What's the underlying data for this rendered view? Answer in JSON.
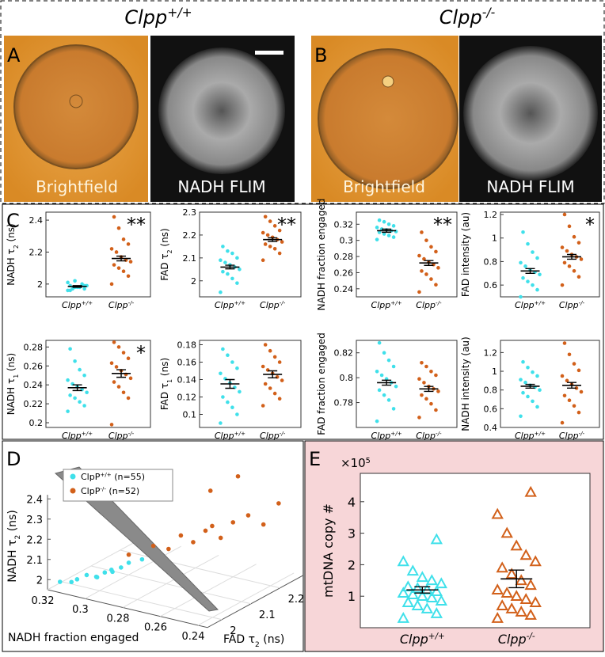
{
  "header": {
    "left": {
      "text": "Clpp",
      "sup": "+/+"
    },
    "right": {
      "text": "Clpp",
      "sup": "-/-"
    }
  },
  "images": [
    {
      "label": "A",
      "bright": "Brightfield",
      "flim": "NADH FLIM"
    },
    {
      "label": "B",
      "bright": "Brightfield",
      "flim": "NADH FLIM"
    }
  ],
  "panel_c": {
    "label": "C",
    "groups": [
      {
        "text": "Clpp",
        "sup": "+/+",
        "color": "#3fe0ea"
      },
      {
        "text": "Clpp",
        "sup": "-/-",
        "color": "#d2601a"
      }
    ],
    "plots": [
      {
        "type": "swarm",
        "ylabel": {
          "text": "NADH τ",
          "sub": "2",
          "unit": " (ns)"
        },
        "ylim": [
          1.92,
          2.45
        ],
        "yticks": [
          2,
          2.2,
          2.4
        ],
        "significance": "**",
        "groups": [
          {
            "values": [
              1.96,
              1.97,
              1.98,
              1.98,
              1.99,
              1.99,
              2.0,
              1.98,
              1.97,
              2.01,
              1.99,
              1.98,
              2.02,
              1.96
            ],
            "mean": 1.985,
            "sem": 0.005
          },
          {
            "values": [
              2.0,
              2.05,
              2.08,
              2.1,
              2.12,
              2.14,
              2.15,
              2.17,
              2.2,
              2.22,
              2.25,
              2.28,
              2.35,
              2.42
            ],
            "mean": 2.16,
            "sem": 0.015
          }
        ]
      },
      {
        "type": "swarm",
        "ylabel": {
          "text": "FAD τ",
          "sub": "2",
          "unit": " (ns)"
        },
        "ylim": [
          1.93,
          2.3
        ],
        "yticks": [
          2,
          2.1,
          2.2,
          2.3
        ],
        "significance": "**",
        "groups": [
          {
            "values": [
              1.95,
              1.99,
              2.01,
              2.03,
              2.04,
              2.05,
              2.06,
              2.07,
              2.08,
              2.09,
              2.1,
              2.12,
              2.13,
              2.15
            ],
            "mean": 2.06,
            "sem": 0.008
          },
          {
            "values": [
              2.09,
              2.12,
              2.14,
              2.15,
              2.16,
              2.17,
              2.18,
              2.19,
              2.2,
              2.21,
              2.22,
              2.24,
              2.26,
              2.28
            ],
            "mean": 2.18,
            "sem": 0.008
          }
        ]
      },
      {
        "type": "swarm",
        "ylabel": {
          "text": "NADH fraction engaged"
        },
        "ylim": [
          0.23,
          0.335
        ],
        "yticks": [
          0.24,
          0.26,
          0.28,
          0.3,
          0.32
        ],
        "significance": "**",
        "groups": [
          {
            "values": [
              0.301,
              0.304,
              0.306,
              0.308,
              0.31,
              0.311,
              0.312,
              0.313,
              0.314,
              0.316,
              0.318,
              0.32,
              0.323,
              0.325
            ],
            "mean": 0.312,
            "sem": 0.002
          },
          {
            "values": [
              0.236,
              0.245,
              0.252,
              0.258,
              0.262,
              0.266,
              0.27,
              0.273,
              0.277,
              0.281,
              0.286,
              0.292,
              0.3,
              0.31
            ],
            "mean": 0.272,
            "sem": 0.003
          }
        ]
      },
      {
        "type": "swarm",
        "ylabel": {
          "text": "FAD intensity (au)"
        },
        "ylim": [
          0.5,
          1.22
        ],
        "yticks": [
          0.6,
          0.8,
          1,
          1.2
        ],
        "significance": "*",
        "groups": [
          {
            "values": [
              0.5,
              0.56,
              0.6,
              0.63,
              0.66,
              0.69,
              0.71,
              0.73,
              0.76,
              0.79,
              0.83,
              0.88,
              0.95,
              1.05
            ],
            "mean": 0.72,
            "sem": 0.02
          },
          {
            "values": [
              0.6,
              0.67,
              0.72,
              0.76,
              0.79,
              0.82,
              0.84,
              0.86,
              0.89,
              0.92,
              0.96,
              1.01,
              1.1,
              1.2
            ],
            "mean": 0.84,
            "sem": 0.02
          }
        ]
      },
      {
        "type": "swarm",
        "ylabel": {
          "text": "NADH τ",
          "sub": "1",
          "unit": " (ns)"
        },
        "ylim": [
          0.195,
          0.287
        ],
        "yticks": [
          0.2,
          0.22,
          0.24,
          0.26,
          0.28
        ],
        "significance": "*",
        "groups": [
          {
            "values": [
              0.212,
              0.218,
              0.222,
              0.226,
              0.229,
              0.232,
              0.235,
              0.238,
              0.241,
              0.245,
              0.25,
              0.256,
              0.265,
              0.278
            ],
            "mean": 0.237,
            "sem": 0.003
          },
          {
            "values": [
              0.198,
              0.226,
              0.232,
              0.238,
              0.243,
              0.247,
              0.251,
              0.255,
              0.259,
              0.263,
              0.268,
              0.274,
              0.28,
              0.285
            ],
            "mean": 0.252,
            "sem": 0.004
          }
        ]
      },
      {
        "type": "swarm",
        "ylabel": {
          "text": "FAD τ",
          "sub": "1",
          "unit": " (ns)"
        },
        "ylim": [
          0.085,
          0.185
        ],
        "yticks": [
          0.1,
          0.12,
          0.14,
          0.16,
          0.18
        ],
        "groups": [
          {
            "values": [
              0.09,
              0.1,
              0.108,
              0.114,
              0.12,
              0.126,
              0.131,
              0.136,
              0.141,
              0.147,
              0.153,
              0.16,
              0.168,
              0.175
            ],
            "mean": 0.135,
            "sem": 0.005
          },
          {
            "values": [
              0.11,
              0.118,
              0.124,
              0.13,
              0.135,
              0.139,
              0.143,
              0.147,
              0.151,
              0.155,
              0.16,
              0.166,
              0.173,
              0.18
            ],
            "mean": 0.146,
            "sem": 0.004
          }
        ]
      },
      {
        "type": "swarm",
        "ylabel": {
          "text": "FAD fraction engaged"
        },
        "ylim": [
          0.76,
          0.83
        ],
        "yticks": [
          0.78,
          0.8,
          0.82
        ],
        "groups": [
          {
            "values": [
              0.765,
              0.775,
              0.782,
              0.786,
              0.79,
              0.793,
              0.796,
              0.799,
              0.802,
              0.805,
              0.809,
              0.814,
              0.82,
              0.828
            ],
            "mean": 0.796,
            "sem": 0.002
          },
          {
            "values": [
              0.768,
              0.774,
              0.779,
              0.783,
              0.786,
              0.789,
              0.791,
              0.793,
              0.796,
              0.799,
              0.802,
              0.805,
              0.809,
              0.812
            ],
            "mean": 0.791,
            "sem": 0.002
          }
        ]
      },
      {
        "type": "swarm",
        "ylabel": {
          "text": "NADH intensity (au)"
        },
        "ylim": [
          0.4,
          1.33
        ],
        "yticks": [
          0.4,
          0.6,
          0.8,
          1,
          1.2
        ],
        "groups": [
          {
            "values": [
              0.52,
              0.62,
              0.68,
              0.73,
              0.77,
              0.8,
              0.83,
              0.85,
              0.88,
              0.91,
              0.95,
              0.99,
              1.04,
              1.1
            ],
            "mean": 0.84,
            "sem": 0.02
          },
          {
            "values": [
              0.45,
              0.56,
              0.63,
              0.69,
              0.74,
              0.78,
              0.82,
              0.86,
              0.9,
              0.95,
              1.01,
              1.08,
              1.18,
              1.3
            ],
            "mean": 0.85,
            "sem": 0.03
          }
        ]
      }
    ]
  },
  "panel_d": {
    "label": "D",
    "type": "scatter3d",
    "xlabel": "NADH fraction engaged",
    "ylabel": {
      "text": "FAD τ",
      "sub": "2",
      "unit": " (ns)"
    },
    "zlabel": {
      "text": "NADH τ",
      "sub": "2",
      "unit": " (ns)"
    },
    "xticks": [
      0.32,
      0.3,
      0.28,
      0.26,
      0.24
    ],
    "yticks": [
      2,
      2.1,
      2.2
    ],
    "zticks": [
      2,
      2.1,
      2.2,
      2.3,
      2.4
    ],
    "series": [
      {
        "name": "ClpP",
        "sup": "+/+",
        "n": " (n=55)",
        "color": "#3fe0ea",
        "x": [
          0.318,
          0.312,
          0.31,
          0.306,
          0.305,
          0.303,
          0.308,
          0.301,
          0.315,
          0.3,
          0.304,
          0.296
        ],
        "y": [
          1.98,
          2.0,
          2.02,
          2.03,
          2.05,
          2.06,
          2.04,
          2.08,
          2.0,
          2.1,
          2.07,
          2.12
        ],
        "z": [
          1.97,
          1.98,
          1.99,
          1.98,
          1.99,
          2.0,
          1.97,
          2.0,
          1.96,
          2.01,
          1.98,
          2.02
        ]
      },
      {
        "name": "ClpP",
        "sup": "-/-",
        "n": " (n=52)",
        "color": "#d2601a",
        "x": [
          0.3,
          0.29,
          0.285,
          0.28,
          0.275,
          0.27,
          0.268,
          0.265,
          0.26,
          0.255,
          0.25,
          0.245,
          0.272,
          0.262
        ],
        "y": [
          2.1,
          2.12,
          2.14,
          2.15,
          2.16,
          2.17,
          2.18,
          2.19,
          2.2,
          2.22,
          2.24,
          2.26,
          2.2,
          2.23
        ],
        "z": [
          2.05,
          2.1,
          2.08,
          2.15,
          2.12,
          2.18,
          2.2,
          2.14,
          2.22,
          2.25,
          2.2,
          2.3,
          2.35,
          2.42
        ]
      }
    ]
  },
  "panel_e": {
    "label": "E",
    "type": "swarm",
    "ylabel": "mtDNA copy #",
    "exponent": {
      "text": "×10",
      "sup": "5"
    },
    "ylim": [
      0,
      4.9
    ],
    "yticks": [
      1,
      2,
      3,
      4
    ],
    "groups": [
      {
        "text": "Clpp",
        "sup": "+/+",
        "color": "#3fe0ea",
        "values": [
          0.3,
          0.45,
          0.6,
          0.7,
          0.8,
          0.85,
          0.95,
          1.0,
          1.05,
          1.1,
          1.15,
          1.2,
          1.25,
          1.3,
          1.4,
          1.5,
          1.6,
          1.8,
          2.1,
          2.8
        ],
        "mean": 1.2,
        "sem": 0.1
      },
      {
        "text": "Clpp",
        "sup": "-/-",
        "color": "#d2601a",
        "values": [
          0.3,
          0.4,
          0.5,
          0.6,
          0.7,
          0.8,
          0.9,
          1.0,
          1.1,
          1.2,
          1.35,
          1.5,
          1.7,
          1.9,
          2.1,
          2.3,
          2.6,
          3.0,
          3.6,
          4.3
        ],
        "mean": 1.55,
        "sem": 0.28
      }
    ]
  }
}
